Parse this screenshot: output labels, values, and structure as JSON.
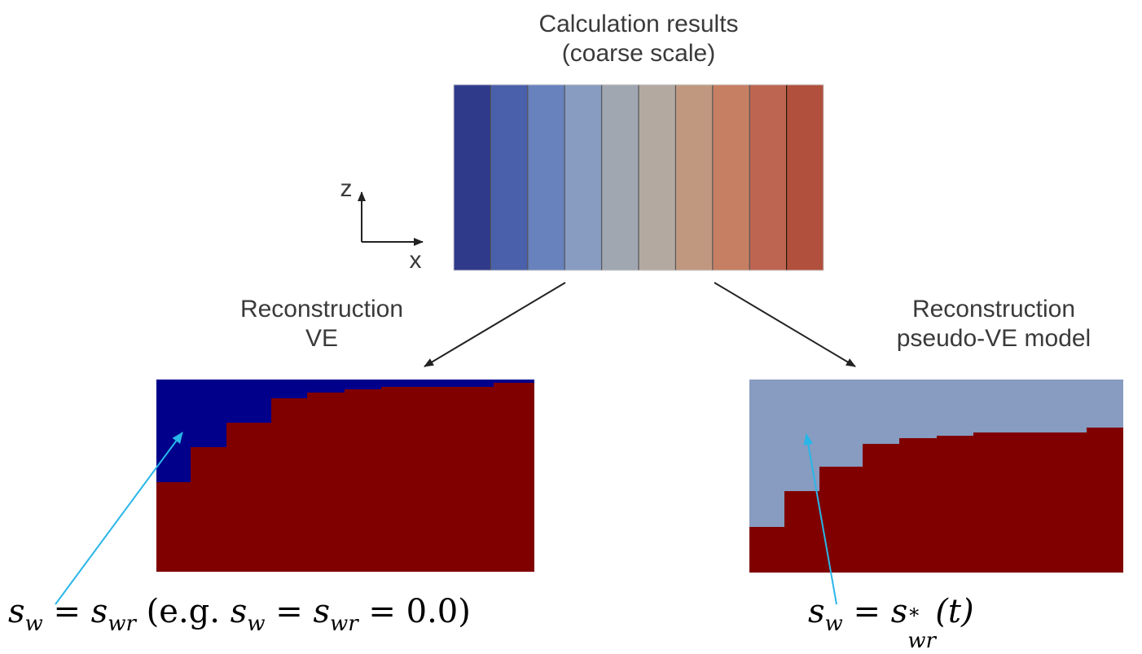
{
  "top": {
    "title_line1": "Calculation results",
    "title_line2": "(coarse scale)",
    "stripe_colors": [
      "#2f3a8b",
      "#4a60aa",
      "#6782bd",
      "#879cc0",
      "#a0a7b0",
      "#b3a9a0",
      "#c09880",
      "#c67f62",
      "#bd6550",
      "#b0503d"
    ]
  },
  "axes": {
    "z_label": "z",
    "x_label": "x"
  },
  "left": {
    "title_line1": "Reconstruction",
    "title_line2": "VE",
    "top_color": "#00008b",
    "bottom_color": "#800000",
    "formula": {
      "s": "s",
      "w": "w",
      "eq": " = ",
      "wr": "wr",
      "eg": " (e.g. ",
      "val": " = 0.0)"
    }
  },
  "right": {
    "title_line1": "Reconstruction",
    "title_line2": "pseudo-VE model",
    "top_color": "#879cc0",
    "bottom_color": "#800000",
    "formula": {
      "s": "s",
      "w": "w",
      "eq": " = ",
      "star": "*",
      "wr": "wr",
      "t": "(t)"
    }
  },
  "colors": {
    "arrow": "#222222",
    "pointer": "#29b6e8"
  }
}
